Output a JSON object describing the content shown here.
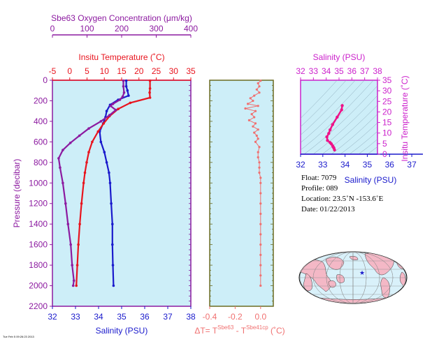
{
  "colors": {
    "plot_bg": "#cdeef8",
    "salinity": "#1a1acc",
    "temperature": "#e8141e",
    "oxygen": "#8c1aa0",
    "delta_t": "#f07070",
    "ts": "#ee1288",
    "ts_axes": "#cc22cc",
    "pressure_label": "#8c1aa0",
    "map_land": "#f4b8c6",
    "map_ocean": "#d9f1fa",
    "float_marker": "#1a1acc"
  },
  "titles": {
    "oxygen": "Sbe63 Oxygen Concentration (μm/kg)",
    "temperature": "Insitu Temperature (˚C)",
    "salinity_bottom": "Salinity (PSU)",
    "pressure": "Pressure (decibar)",
    "ts_salinity_top": "Salinity (PSU)",
    "ts_salinity_bottom": "Salinity (PSU)",
    "ts_temperature": "Insitu Temperature (˚C)",
    "delta_prefix": "ΔT= T",
    "delta_sup1": "Sbe63",
    "delta_mid": " - T",
    "delta_sup2": "Sbe41cp",
    "delta_suffix": " (˚C)"
  },
  "info": {
    "float": "Float:  7079",
    "profile": "Profile:  089",
    "location": "Location:  23.5˚N  -153.6˚E",
    "date": "Date:  01/22/2013"
  },
  "footer_text": "Tue Feb  5 09:26:23 2013",
  "chart_data": [
    {
      "type": "line",
      "name": "profiles",
      "y_axis": {
        "label": "Pressure (decibar)",
        "ylim": [
          2200,
          0
        ],
        "ticks": [
          0,
          200,
          400,
          600,
          800,
          1000,
          1200,
          1400,
          1600,
          1800,
          2000,
          2200
        ]
      },
      "salinity_axis": {
        "label": "Salinity (PSU)",
        "xlim": [
          32,
          38
        ],
        "ticks": [
          32,
          33,
          34,
          35,
          36,
          37,
          38
        ]
      },
      "temperature_axis": {
        "label": "Insitu Temperature (˚C)",
        "xlim": [
          -5,
          35
        ],
        "ticks": [
          -5,
          0,
          5,
          10,
          15,
          20,
          25,
          30,
          35
        ]
      },
      "oxygen_axis": {
        "label": "Sbe63 Oxygen Concentration (μm/kg)",
        "xlim": [
          0,
          400
        ],
        "ticks": [
          0,
          100,
          200,
          300,
          400
        ]
      },
      "series": [
        {
          "key": "salinity",
          "axis": "salinity",
          "points": [
            [
              35.2,
              5
            ],
            [
              35.2,
              60
            ],
            [
              35.25,
              100
            ],
            [
              35.3,
              150
            ],
            [
              34.85,
              190
            ],
            [
              34.5,
              240
            ],
            [
              34.35,
              300
            ],
            [
              34.3,
              360
            ],
            [
              34.2,
              420
            ],
            [
              34.05,
              500
            ],
            [
              34.1,
              600
            ],
            [
              34.25,
              700
            ],
            [
              34.35,
              800
            ],
            [
              34.45,
              900
            ],
            [
              34.5,
              1000
            ],
            [
              34.55,
              1200
            ],
            [
              34.6,
              1400
            ],
            [
              34.6,
              1600
            ],
            [
              34.62,
              1800
            ],
            [
              34.65,
              2000
            ]
          ]
        },
        {
          "key": "temperature",
          "axis": "temperature",
          "points": [
            [
              23.2,
              5
            ],
            [
              23.2,
              80
            ],
            [
              23.1,
              120
            ],
            [
              23.2,
              170
            ],
            [
              17.5,
              220
            ],
            [
              14.0,
              280
            ],
            [
              11.5,
              350
            ],
            [
              9.8,
              420
            ],
            [
              8.2,
              500
            ],
            [
              6.5,
              600
            ],
            [
              5.5,
              700
            ],
            [
              4.9,
              800
            ],
            [
              4.4,
              900
            ],
            [
              4.0,
              1000
            ],
            [
              3.4,
              1200
            ],
            [
              2.9,
              1400
            ],
            [
              2.5,
              1600
            ],
            [
              2.2,
              1800
            ],
            [
              1.9,
              2000
            ]
          ]
        },
        {
          "key": "oxygen",
          "axis": "oxygen",
          "points": [
            [
              205,
              5
            ],
            [
              205,
              60
            ],
            [
              207,
              120
            ],
            [
              203,
              160
            ],
            [
              195,
              190
            ],
            [
              175,
              230
            ],
            [
              168,
              250
            ],
            [
              183,
              290
            ],
            [
              165,
              340
            ],
            [
              140,
              400
            ],
            [
              105,
              470
            ],
            [
              78,
              540
            ],
            [
              52,
              610
            ],
            [
              30,
              680
            ],
            [
              18,
              760
            ],
            [
              22,
              850
            ],
            [
              30,
              1000
            ],
            [
              38,
              1200
            ],
            [
              45,
              1400
            ],
            [
              53,
              1600
            ],
            [
              57,
              1800
            ],
            [
              62,
              1950
            ],
            [
              60,
              2000
            ]
          ]
        }
      ]
    },
    {
      "type": "scatter",
      "name": "delta_t",
      "xlabel": "ΔT= TSbe63 - TSbe41cp (˚C)",
      "xlim": [
        -0.4,
        0.1
      ],
      "xticks": [
        -0.4,
        -0.2,
        0.0
      ],
      "ylim": [
        2200,
        0
      ],
      "points": [
        [
          0.0,
          5
        ],
        [
          -0.02,
          30
        ],
        [
          -0.01,
          60
        ],
        [
          -0.03,
          90
        ],
        [
          -0.01,
          120
        ],
        [
          -0.05,
          150
        ],
        [
          -0.08,
          175
        ],
        [
          -0.06,
          200
        ],
        [
          -0.1,
          230
        ],
        [
          -0.02,
          250
        ],
        [
          -0.12,
          275
        ],
        [
          -0.04,
          300
        ],
        [
          -0.07,
          330
        ],
        [
          -0.05,
          360
        ],
        [
          -0.09,
          390
        ],
        [
          -0.04,
          420
        ],
        [
          -0.06,
          450
        ],
        [
          -0.02,
          480
        ],
        [
          -0.05,
          510
        ],
        [
          -0.03,
          540
        ],
        [
          -0.02,
          570
        ],
        [
          -0.04,
          600
        ],
        [
          -0.01,
          650
        ],
        [
          -0.02,
          700
        ],
        [
          -0.02,
          750
        ],
        [
          -0.01,
          800
        ],
        [
          -0.01,
          850
        ],
        [
          -0.01,
          900
        ],
        [
          0.0,
          950
        ],
        [
          0.0,
          1000
        ],
        [
          0.0,
          1100
        ],
        [
          0.0,
          1200
        ],
        [
          0.0,
          1300
        ],
        [
          0.0,
          1400
        ],
        [
          0.0,
          1500
        ],
        [
          0.0,
          1600
        ],
        [
          0.0,
          1700
        ],
        [
          0.0,
          1800
        ],
        [
          0.0,
          1900
        ],
        [
          0.0,
          2000
        ]
      ]
    },
    {
      "type": "line",
      "name": "t_s",
      "xlabel": "Salinity (PSU)",
      "ylabel": "Insitu Temperature (˚C)",
      "xlim": [
        32,
        38
      ],
      "xlim_bottom": [
        32,
        37.5
      ],
      "ylim": [
        0,
        35
      ],
      "xticks_top": [
        32,
        33,
        34,
        35,
        36,
        37,
        38
      ],
      "xticks_bottom": [
        32,
        33,
        34,
        35,
        36,
        37
      ],
      "yticks": [
        0,
        5,
        10,
        15,
        20,
        25,
        30,
        35
      ],
      "points": [
        [
          34.65,
          2.0
        ],
        [
          34.6,
          2.9
        ],
        [
          34.55,
          3.4
        ],
        [
          34.5,
          4.0
        ],
        [
          34.4,
          4.9
        ],
        [
          34.3,
          5.5
        ],
        [
          34.1,
          6.5
        ],
        [
          34.05,
          8.2
        ],
        [
          34.2,
          9.8
        ],
        [
          34.3,
          11.5
        ],
        [
          34.5,
          14.0
        ],
        [
          34.85,
          17.5
        ],
        [
          35.2,
          21.0
        ],
        [
          35.25,
          23.0
        ]
      ]
    }
  ]
}
